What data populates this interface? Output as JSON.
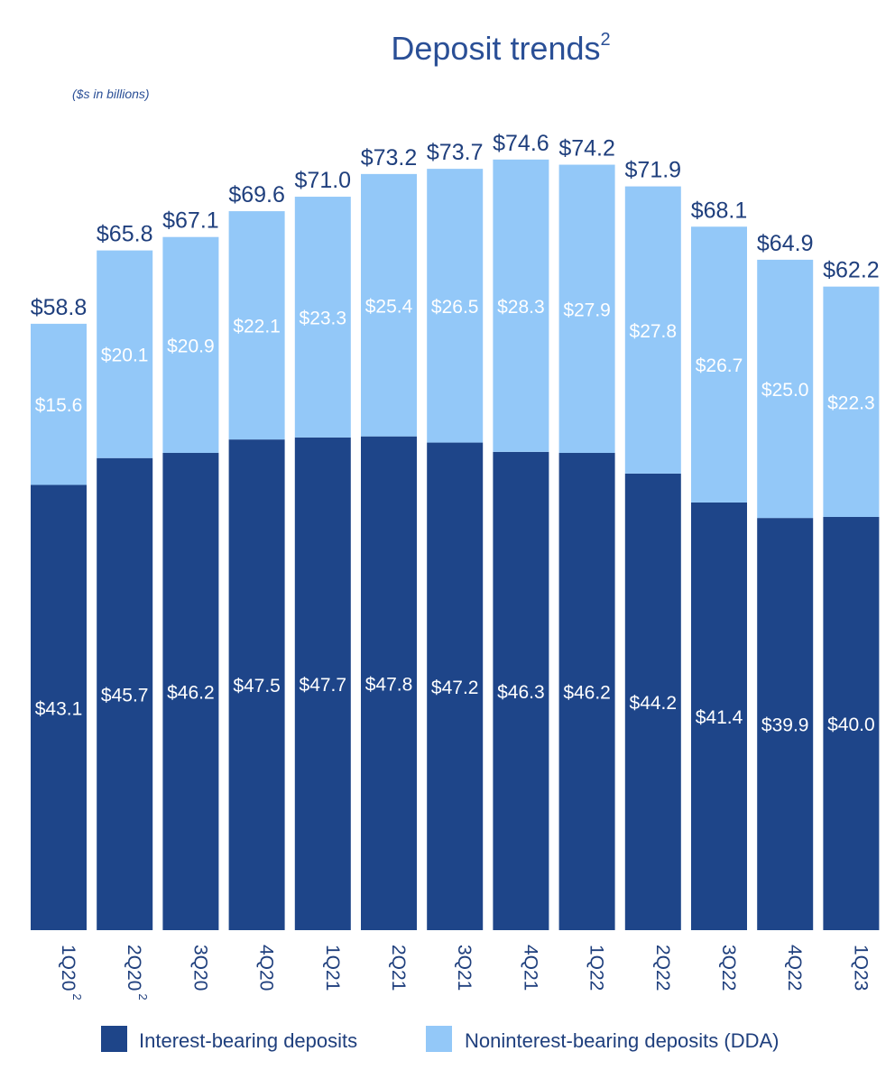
{
  "title": "Deposit trends",
  "title_superscript": "2",
  "unit_note": "($s in billions)",
  "colors": {
    "interest_bearing": "#1e4589",
    "noninterest_bearing": "#93c8f8",
    "text": "#1f3f7d",
    "title": "#2a4f96"
  },
  "legend": {
    "interest_bearing": "Interest-bearing deposits",
    "noninterest_bearing": "Noninterest-bearing deposits (DDA)"
  },
  "chart_data": {
    "type": "bar",
    "stacked": true,
    "categories": [
      "1Q20",
      "2Q20",
      "3Q20",
      "4Q20",
      "1Q21",
      "2Q21",
      "3Q21",
      "4Q21",
      "1Q22",
      "2Q22",
      "3Q22",
      "4Q22",
      "1Q23"
    ],
    "category_superscripts": [
      "2",
      "2",
      "",
      "",
      "",
      "",
      "",
      "",
      "",
      "",
      "",
      "",
      ""
    ],
    "series": [
      {
        "name": "Interest-bearing deposits",
        "values": [
          43.1,
          45.7,
          46.2,
          47.5,
          47.7,
          47.8,
          47.2,
          46.3,
          46.2,
          44.2,
          41.4,
          39.9,
          40.0
        ],
        "labels": [
          "$43.1",
          "$45.7",
          "$46.2",
          "$47.5",
          "$47.7",
          "$47.8",
          "$47.2",
          "$46.3",
          "$46.2",
          "$44.2",
          "$41.4",
          "$39.9",
          "$40.0"
        ]
      },
      {
        "name": "Noninterest-bearing deposits (DDA)",
        "values": [
          15.6,
          20.1,
          20.9,
          22.1,
          23.3,
          25.4,
          26.5,
          28.3,
          27.9,
          27.8,
          26.7,
          25.0,
          22.3
        ],
        "labels": [
          "$15.6",
          "$20.1",
          "$20.9",
          "$22.1",
          "$23.3",
          "$25.4",
          "$26.5",
          "$28.3",
          "$27.9",
          "$27.8",
          "$26.7",
          "$25.0",
          "$22.3"
        ]
      }
    ],
    "totals": [
      58.8,
      65.8,
      67.1,
      69.6,
      71.0,
      73.2,
      73.7,
      74.6,
      74.2,
      71.9,
      68.1,
      64.9,
      62.2
    ],
    "total_labels": [
      "$58.8",
      "$65.8",
      "$67.1",
      "$69.6",
      "$71.0",
      "$73.2",
      "$73.7",
      "$74.6",
      "$74.2",
      "$71.9",
      "$68.1",
      "$64.9",
      "$62.2"
    ],
    "ylim": [
      0,
      74.6
    ],
    "grid": false,
    "legend_position": "bottom"
  }
}
